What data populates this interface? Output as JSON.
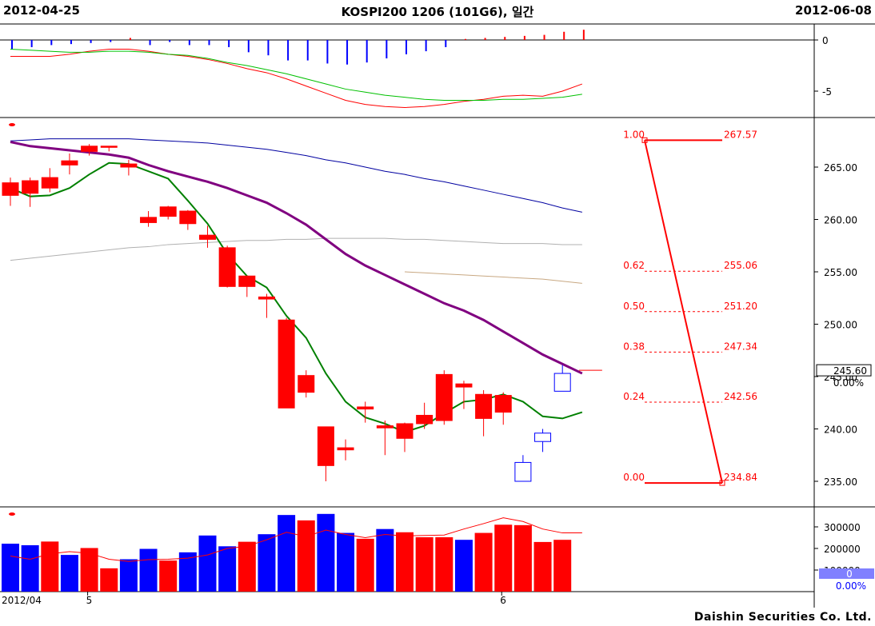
{
  "header": {
    "start_date": "2012-04-25",
    "title": "KOSPI200 1206 (101G6), 일간",
    "end_date": "2012-06-08"
  },
  "footer": {
    "copyright": "Daishin Securities Co. Ltd."
  },
  "x_axis": {
    "labels": [
      {
        "text": "2012/04",
        "index": 0
      },
      {
        "text": "5",
        "index": 4
      },
      {
        "text": "6",
        "index": 25
      }
    ]
  },
  "colors": {
    "up": "#ff0000",
    "down": "#0000ff",
    "ma5": "#008000",
    "ma20": "#800080",
    "ma60": "#0000a0",
    "ma120": "#b0b0b0",
    "ma200": "#c8a882",
    "fib": "#ff0000"
  },
  "chart_data": [
    {
      "type": "bar",
      "panel": "oscillator",
      "ylim": [
        -7.5,
        1.5
      ],
      "ticks": [
        {
          "value": 0,
          "label": "0"
        },
        {
          "value": -5,
          "label": "-5"
        }
      ],
      "histogram": [
        -0.9,
        -0.7,
        -0.5,
        -0.4,
        -0.3,
        -0.2,
        0.2,
        -0.5,
        -0.2,
        -0.5,
        -0.5,
        -0.7,
        -1.2,
        -1.5,
        -2.0,
        -2.0,
        -2.3,
        -2.4,
        -2.2,
        -1.8,
        -1.4,
        -1.1,
        -0.7,
        0.1,
        0.2,
        0.3,
        0.4,
        0.5,
        0.8,
        1.0
      ],
      "series": [
        {
          "color": "red",
          "values": [
            -1.6,
            -1.6,
            -1.6,
            -1.4,
            -1.1,
            -0.9,
            -0.9,
            -1.1,
            -1.4,
            -1.6,
            -1.9,
            -2.3,
            -2.8,
            -3.2,
            -3.8,
            -4.5,
            -5.2,
            -5.9,
            -6.3,
            -6.5,
            -6.6,
            -6.5,
            -6.3,
            -6.0,
            -5.8,
            -5.5,
            -5.4,
            -5.5,
            -5.0,
            -4.3
          ]
        },
        {
          "color": "green",
          "values": [
            -0.9,
            -1.0,
            -1.1,
            -1.2,
            -1.2,
            -1.1,
            -1.1,
            -1.2,
            -1.4,
            -1.5,
            -1.8,
            -2.2,
            -2.5,
            -2.9,
            -3.3,
            -3.8,
            -4.3,
            -4.8,
            -5.1,
            -5.4,
            -5.6,
            -5.8,
            -5.9,
            -5.9,
            -5.9,
            -5.8,
            -5.8,
            -5.7,
            -5.6,
            -5.3
          ]
        }
      ]
    },
    {
      "type": "candlestick",
      "panel": "price",
      "ylim": [
        232.5,
        270.5
      ],
      "ticks": [
        {
          "value": 265,
          "label": "265.00"
        },
        {
          "value": 260,
          "label": "260.00"
        },
        {
          "value": 255,
          "label": "255.00"
        },
        {
          "value": 250,
          "label": "250.00"
        },
        {
          "value": 245,
          "label": "245.00"
        },
        {
          "value": 240,
          "label": "240.00"
        },
        {
          "value": 235,
          "label": "235.00"
        }
      ],
      "last_price": {
        "value": 245.6,
        "label": "245.60",
        "change": "0.00%"
      },
      "candles": [
        {
          "o": 262.3,
          "h": 264.0,
          "l": 261.3,
          "c": 263.5
        },
        {
          "o": 262.5,
          "h": 264.0,
          "l": 261.2,
          "c": 263.7
        },
        {
          "o": 263.0,
          "h": 264.9,
          "l": 262.6,
          "c": 264.0
        },
        {
          "o": 265.2,
          "h": 266.3,
          "l": 264.3,
          "c": 265.6
        },
        {
          "o": 266.5,
          "h": 267.2,
          "l": 266.1,
          "c": 267.0
        },
        {
          "o": 267.0,
          "h": 267.0,
          "l": 266.5,
          "c": 267.0
        },
        {
          "o": 265.0,
          "h": 265.7,
          "l": 264.2,
          "c": 265.3
        },
        {
          "o": 259.7,
          "h": 260.8,
          "l": 259.3,
          "c": 260.2
        },
        {
          "o": 260.3,
          "h": 261.3,
          "l": 260.0,
          "c": 261.2
        },
        {
          "o": 259.6,
          "h": 260.9,
          "l": 259.0,
          "c": 260.8
        },
        {
          "o": 258.1,
          "h": 259.4,
          "l": 257.3,
          "c": 258.5
        },
        {
          "o": 253.6,
          "h": 257.5,
          "l": 253.5,
          "c": 257.3
        },
        {
          "o": 253.6,
          "h": 254.6,
          "l": 252.6,
          "c": 254.6
        },
        {
          "o": 252.4,
          "h": 252.9,
          "l": 250.6,
          "c": 252.6
        },
        {
          "o": 242.0,
          "h": 250.6,
          "l": 242.0,
          "c": 250.4
        },
        {
          "o": 243.5,
          "h": 245.6,
          "l": 243.0,
          "c": 245.1
        },
        {
          "o": 236.5,
          "h": 240.2,
          "l": 235.0,
          "c": 240.2
        },
        {
          "o": 238.0,
          "h": 239.0,
          "l": 237.0,
          "c": 238.2
        },
        {
          "o": 241.9,
          "h": 242.6,
          "l": 240.6,
          "c": 242.1
        },
        {
          "o": 240.1,
          "h": 240.8,
          "l": 237.5,
          "c": 240.3
        },
        {
          "o": 239.1,
          "h": 240.6,
          "l": 237.8,
          "c": 240.5
        },
        {
          "o": 240.5,
          "h": 242.5,
          "l": 240.0,
          "c": 241.3
        },
        {
          "o": 240.8,
          "h": 245.6,
          "l": 240.4,
          "c": 245.2
        },
        {
          "o": 244.0,
          "h": 244.6,
          "l": 241.9,
          "c": 244.3
        },
        {
          "o": 241.0,
          "h": 243.7,
          "l": 239.3,
          "c": 243.3
        },
        {
          "o": 241.6,
          "h": 243.5,
          "l": 240.4,
          "c": 243.2
        },
        {
          "o": 236.8,
          "h": 237.5,
          "l": 235.0,
          "c": 235.0
        },
        {
          "o": 239.6,
          "h": 240.0,
          "l": 237.8,
          "c": 238.8
        },
        {
          "o": 245.3,
          "h": 246.1,
          "l": 243.6,
          "c": 243.6
        },
        {
          "o": 245.6,
          "h": 245.6,
          "l": 245.6,
          "c": 245.6
        }
      ],
      "series": [
        {
          "name": "MA5",
          "values": [
            263.0,
            262.2,
            262.3,
            263.0,
            264.3,
            265.4,
            265.3,
            264.6,
            263.9,
            261.8,
            259.6,
            256.7,
            254.6,
            253.5,
            250.8,
            248.7,
            245.3,
            242.6,
            241.1,
            240.5,
            239.7,
            240.3,
            241.5,
            242.6,
            242.8,
            243.3,
            242.6,
            241.2,
            241.0,
            241.6
          ]
        },
        {
          "name": "MA20",
          "values": [
            267.4,
            267.0,
            266.8,
            266.6,
            266.4,
            266.2,
            265.9,
            265.2,
            264.6,
            264.1,
            263.6,
            263.0,
            262.3,
            261.6,
            260.6,
            259.5,
            258.1,
            256.7,
            255.6,
            254.7,
            253.8,
            252.9,
            252.0,
            251.3,
            250.4,
            249.3,
            248.2,
            247.1,
            246.2,
            245.3
          ]
        },
        {
          "name": "MA60",
          "values": [
            267.5,
            267.6,
            267.7,
            267.7,
            267.7,
            267.7,
            267.7,
            267.6,
            267.5,
            267.4,
            267.3,
            267.1,
            266.9,
            266.7,
            266.4,
            266.1,
            265.7,
            265.4,
            265.0,
            264.6,
            264.3,
            263.9,
            263.6,
            263.2,
            262.8,
            262.4,
            262.0,
            261.6,
            261.1,
            260.7
          ]
        },
        {
          "name": "MA120",
          "values": [
            256.1,
            256.3,
            256.5,
            256.7,
            256.9,
            257.1,
            257.3,
            257.4,
            257.6,
            257.7,
            257.8,
            257.9,
            258.0,
            258.0,
            258.1,
            258.1,
            258.2,
            258.2,
            258.2,
            258.2,
            258.1,
            258.1,
            258.0,
            257.9,
            257.8,
            257.7,
            257.7,
            257.7,
            257.6,
            257.6
          ]
        },
        {
          "name": "MA200",
          "values": [
            null,
            null,
            null,
            null,
            null,
            null,
            null,
            null,
            null,
            null,
            null,
            null,
            null,
            null,
            null,
            null,
            null,
            null,
            null,
            null,
            255.0,
            254.9,
            254.8,
            254.7,
            254.6,
            254.5,
            254.4,
            254.3,
            254.1,
            253.9
          ]
        }
      ]
    },
    {
      "type": "fibonacci",
      "panel": "price",
      "high": 267.57,
      "low": 234.84,
      "levels": [
        {
          "ratio": "1.00",
          "price": "267.57",
          "value": 267.57
        },
        {
          "ratio": "0.62",
          "price": "255.06",
          "value": 255.06
        },
        {
          "ratio": "0.50",
          "price": "251.20",
          "value": 251.2
        },
        {
          "ratio": "0.38",
          "price": "247.34",
          "value": 247.34
        },
        {
          "ratio": "0.24",
          "price": "242.56",
          "value": 242.56
        },
        {
          "ratio": "0.00",
          "price": "234.84",
          "value": 234.84
        }
      ]
    },
    {
      "type": "bar",
      "panel": "volume",
      "ylim": [
        0,
        400000
      ],
      "ticks": [
        {
          "value": 300000,
          "label": "300000"
        },
        {
          "value": 200000,
          "label": "200000"
        },
        {
          "value": 100000,
          "label": "100000"
        }
      ],
      "last_volume": {
        "label": "0",
        "change": "0.00%"
      },
      "bars": [
        {
          "v": 222000,
          "up": false
        },
        {
          "v": 215000,
          "up": false
        },
        {
          "v": 232000,
          "up": true
        },
        {
          "v": 170000,
          "up": false
        },
        {
          "v": 202000,
          "up": true
        },
        {
          "v": 108000,
          "up": true
        },
        {
          "v": 150000,
          "up": false
        },
        {
          "v": 198000,
          "up": false
        },
        {
          "v": 144000,
          "up": true
        },
        {
          "v": 182000,
          "up": false
        },
        {
          "v": 260000,
          "up": false
        },
        {
          "v": 210000,
          "up": false
        },
        {
          "v": 231000,
          "up": true
        },
        {
          "v": 266000,
          "up": false
        },
        {
          "v": 355000,
          "up": false
        },
        {
          "v": 330000,
          "up": true
        },
        {
          "v": 360000,
          "up": false
        },
        {
          "v": 272000,
          "up": false
        },
        {
          "v": 245000,
          "up": true
        },
        {
          "v": 290000,
          "up": false
        },
        {
          "v": 275000,
          "up": true
        },
        {
          "v": 252000,
          "up": true
        },
        {
          "v": 252000,
          "up": true
        },
        {
          "v": 240000,
          "up": false
        },
        {
          "v": 272000,
          "up": true
        },
        {
          "v": 310000,
          "up": true
        },
        {
          "v": 308000,
          "up": true
        },
        {
          "v": 230000,
          "up": true
        },
        {
          "v": 240000,
          "up": true
        }
      ],
      "series": [
        {
          "color": "red",
          "values": [
            165000,
            150000,
            175000,
            185000,
            178000,
            150000,
            140000,
            148000,
            150000,
            155000,
            170000,
            200000,
            210000,
            240000,
            275000,
            255000,
            285000,
            265000,
            250000,
            265000,
            258000,
            260000,
            262000,
            290000,
            315000,
            342000,
            325000,
            290000,
            272000,
            272000
          ]
        }
      ]
    }
  ]
}
